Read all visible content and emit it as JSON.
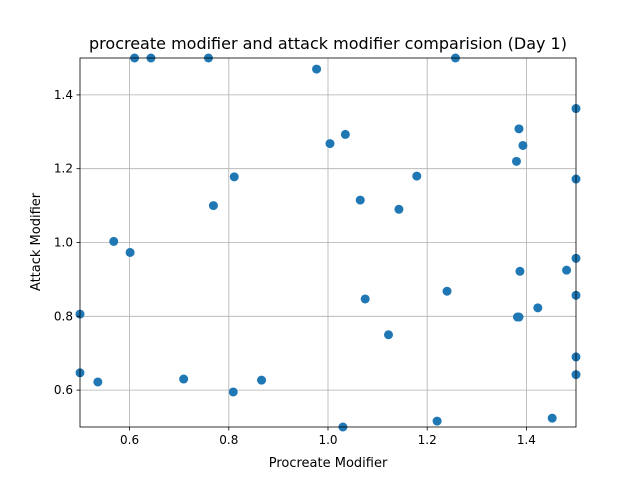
{
  "chart_data": {
    "type": "scatter",
    "title": "procreate modifier and attack modifier comparision (Day 1)",
    "xlabel": "Procreate Modifier",
    "ylabel": "Attack Modifier",
    "xlim": [
      0.5,
      1.5
    ],
    "ylim": [
      0.5,
      1.5
    ],
    "xticks": [
      0.6,
      0.8,
      1.0,
      1.2,
      1.4
    ],
    "yticks": [
      0.6,
      0.8,
      1.0,
      1.2,
      1.4
    ],
    "xtick_labels": [
      "0.6",
      "0.8",
      "1.0",
      "1.2",
      "1.4"
    ],
    "ytick_labels": [
      "0.6",
      "0.8",
      "1.0",
      "1.2",
      "1.4"
    ],
    "grid": true,
    "marker_color": "#1f77b4",
    "x": [
      0.61,
      0.643,
      0.759,
      0.977,
      1.257,
      0.811,
      0.769,
      0.568,
      0.601,
      0.5,
      0.5,
      0.536,
      0.709,
      0.809,
      0.866,
      1.004,
      1.035,
      1.065,
      1.143,
      1.179,
      1.075,
      1.122,
      1.03,
      1.22,
      1.24,
      1.38,
      1.385,
      1.393,
      1.387,
      1.382,
      1.385,
      1.423,
      1.452,
      1.481,
      1.5,
      1.5,
      1.5,
      1.5,
      1.5,
      1.5
    ],
    "y": [
      1.5,
      1.5,
      1.5,
      1.47,
      1.5,
      1.178,
      1.1,
      1.003,
      0.973,
      0.806,
      0.647,
      0.622,
      0.63,
      0.595,
      0.627,
      1.268,
      1.293,
      1.115,
      1.09,
      1.18,
      0.847,
      0.75,
      0.5,
      0.516,
      0.868,
      1.22,
      1.308,
      1.263,
      0.922,
      0.798,
      0.798,
      0.823,
      0.524,
      0.925,
      1.363,
      1.172,
      0.957,
      0.857,
      0.69,
      0.642
    ]
  }
}
